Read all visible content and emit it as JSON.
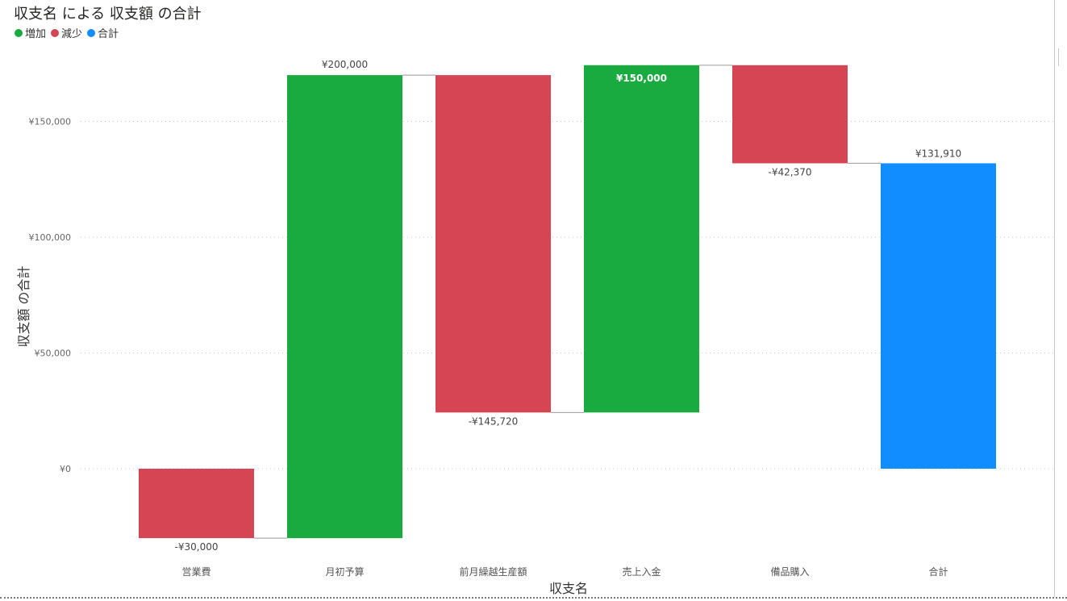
{
  "chart_data": {
    "type": "waterfall",
    "title": "収支名 による 収支額 の合計",
    "xlabel": "収支名",
    "ylabel": "収支額 の合計",
    "legend": [
      {
        "label": "増加",
        "color": "#1AAB40"
      },
      {
        "label": "減少",
        "color": "#D64554"
      },
      {
        "label": "合計",
        "color": "#118DFF"
      }
    ],
    "categories": [
      "営業費",
      "月初予算",
      "前月繰越生産額",
      "売上入金",
      "備品購入",
      "合計"
    ],
    "values": [
      -30000,
      200000,
      -145720,
      150000,
      -42370,
      131910
    ],
    "kinds": [
      "decrease",
      "increase",
      "decrease",
      "increase",
      "decrease",
      "total"
    ],
    "data_labels": [
      "-¥30,000",
      "¥200,000",
      "-¥145,720",
      "¥150,000",
      "-¥42,370",
      "¥131,910"
    ],
    "yticks": [
      0,
      50000,
      100000,
      150000
    ],
    "ytick_labels": [
      "¥0",
      "¥50,000",
      "¥100,000",
      "¥150,000"
    ],
    "ylim": [
      -30000,
      174280
    ],
    "grid": true,
    "legend_placement": "top-left"
  }
}
